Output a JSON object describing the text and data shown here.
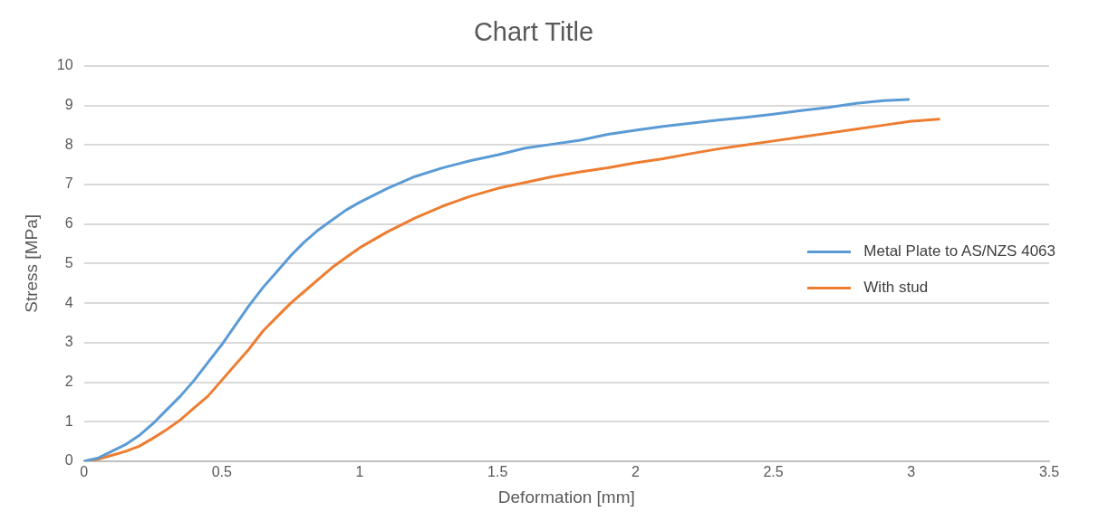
{
  "chart_data": {
    "type": "line",
    "title": "Chart Title",
    "xlabel": "Deformation [mm]",
    "ylabel": "Stress [MPa]",
    "xlim": [
      0,
      3.5
    ],
    "xticks": [
      0,
      0.5,
      1,
      1.5,
      2,
      2.5,
      3,
      3.5
    ],
    "ylim": [
      0,
      10
    ],
    "yticks": [
      0,
      1,
      2,
      3,
      4,
      5,
      6,
      7,
      8,
      9,
      10
    ],
    "grid": "y",
    "legend": "right",
    "marker": "none",
    "line_style": "solid",
    "series": [
      {
        "name": "Metal Plate to AS/NZS 4063",
        "color": "#5b9bd5",
        "x": [
          0,
          0.05,
          0.1,
          0.15,
          0.2,
          0.25,
          0.3,
          0.35,
          0.4,
          0.45,
          0.5,
          0.55,
          0.6,
          0.65,
          0.7,
          0.75,
          0.8,
          0.85,
          0.9,
          0.95,
          1.0,
          1.1,
          1.2,
          1.3,
          1.4,
          1.5,
          1.6,
          1.7,
          1.8,
          1.9,
          2.0,
          2.1,
          2.2,
          2.3,
          2.4,
          2.5,
          2.6,
          2.7,
          2.8,
          2.9,
          2.99
        ],
        "values": [
          0,
          0.08,
          0.25,
          0.42,
          0.65,
          0.95,
          1.3,
          1.65,
          2.05,
          2.5,
          2.95,
          3.45,
          3.95,
          4.4,
          4.8,
          5.2,
          5.55,
          5.85,
          6.1,
          6.35,
          6.55,
          6.9,
          7.2,
          7.42,
          7.6,
          7.75,
          7.92,
          8.02,
          8.12,
          8.27,
          8.37,
          8.47,
          8.55,
          8.63,
          8.7,
          8.78,
          8.87,
          8.95,
          9.05,
          9.12,
          9.15
        ]
      },
      {
        "name": "With stud",
        "color": "#ed7d31",
        "x": [
          0,
          0.05,
          0.1,
          0.15,
          0.2,
          0.25,
          0.3,
          0.35,
          0.4,
          0.45,
          0.5,
          0.55,
          0.6,
          0.65,
          0.7,
          0.75,
          0.8,
          0.85,
          0.9,
          0.95,
          1.0,
          1.1,
          1.2,
          1.3,
          1.4,
          1.5,
          1.6,
          1.7,
          1.8,
          1.9,
          2.0,
          2.1,
          2.2,
          2.3,
          2.4,
          2.5,
          2.6,
          2.7,
          2.8,
          2.9,
          3.0,
          3.1
        ],
        "values": [
          0,
          0.05,
          0.15,
          0.25,
          0.38,
          0.58,
          0.8,
          1.05,
          1.35,
          1.65,
          2.05,
          2.45,
          2.85,
          3.3,
          3.65,
          4.0,
          4.3,
          4.6,
          4.9,
          5.15,
          5.4,
          5.8,
          6.15,
          6.45,
          6.7,
          6.9,
          7.05,
          7.2,
          7.32,
          7.42,
          7.55,
          7.65,
          7.78,
          7.9,
          8.0,
          8.1,
          8.2,
          8.3,
          8.4,
          8.5,
          8.6,
          8.65
        ]
      }
    ]
  }
}
